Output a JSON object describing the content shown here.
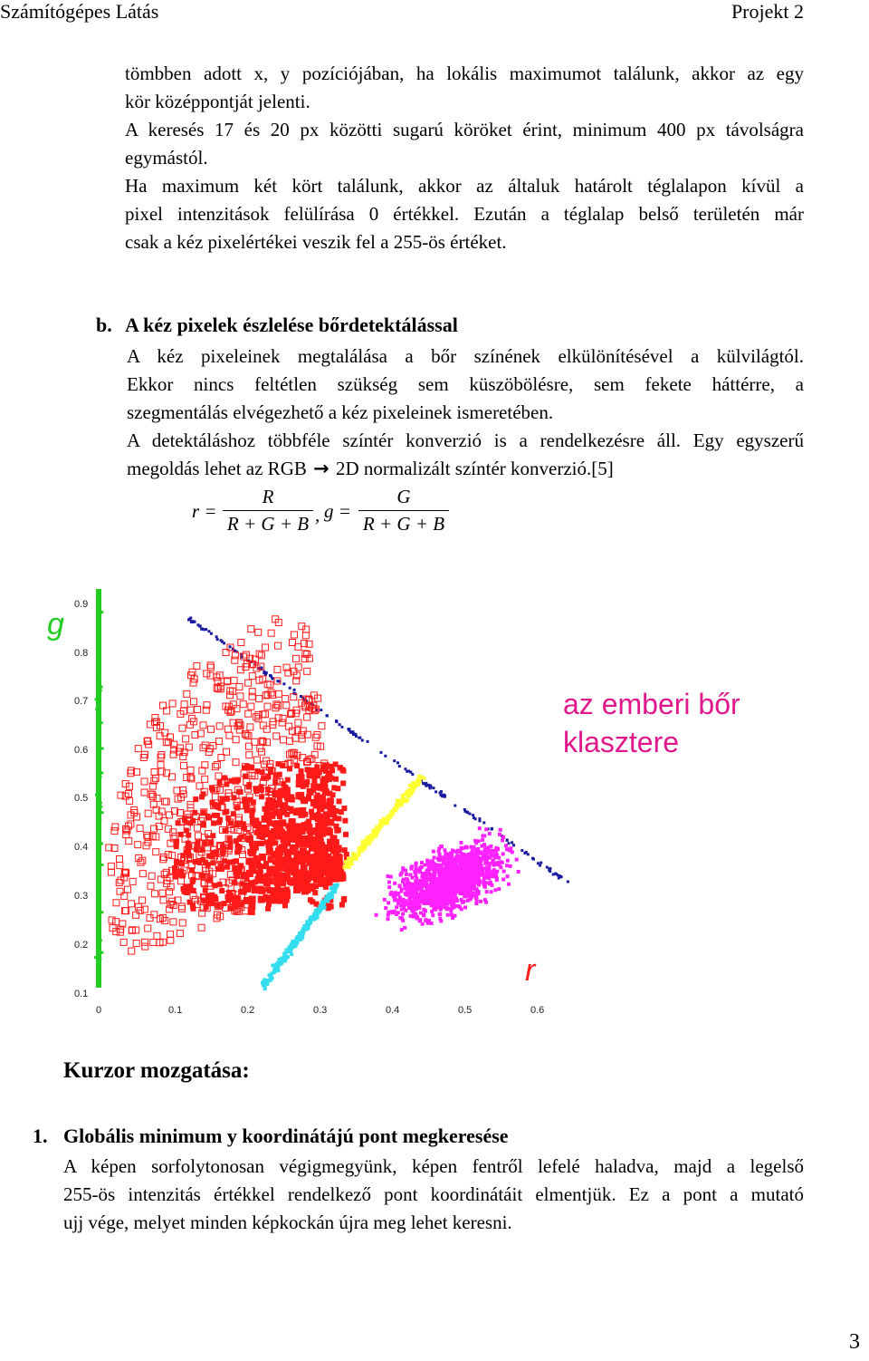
{
  "header": {
    "left": "Számítógépes Látás",
    "right": "Projekt 2"
  },
  "intro_lines": [
    "tömbben adott x, y pozíciójában, ha lokális maximumot találunk, akkor az egy",
    "kör középpontját jelenti.",
    "A keresés 17 és 20 px közötti sugarú köröket érint, minimum 400 px távolságra",
    "egymástól.",
    "Ha maximum két kört találunk, akkor az általuk határolt téglalapon kívül a",
    "pixel intenzitások felülírása 0 értékkel. Ezután a téglalap belső területén már",
    "csak a kéz pixelértékei veszik fel a 255-ös értéket."
  ],
  "section_b": {
    "label": "b.",
    "title": "A kéz pixelek észlelése bőrdetektálással",
    "lines": [
      "A kéz pixeleinek megtalálása a bőr színének elkülönítésével a külvilágtól.",
      "Ekkor nincs feltétlen szükség sem küszöbölésre, sem fekete háttérre, a",
      "szegmentálás elvégezhető a kéz pixeleinek ismeretében.",
      "A detektáláshoz többféle színtér konverzió is a rendelkezésre áll. Egy egyszerű"
    ],
    "last_line_pre": "megoldás lehet az RGB",
    "arrow": "→",
    "last_line_post": "2D normalizált színtér konverzió.[5]"
  },
  "formula": {
    "r_lhs": "r =",
    "r_num": "R",
    "r_den": "R + G + B",
    "sep": ",",
    "g_lhs": "g =",
    "g_num": "G",
    "g_den": "R + G + B"
  },
  "figure": {
    "ylabel": "g",
    "xlabel": "r",
    "annotation_line1": "az emberi bőr",
    "annotation_line2": "klasztere",
    "annotation_color": "#e0188c",
    "y_ticks": [
      "0.9",
      "0.8",
      "0.7",
      "0.6",
      "0.5",
      "0.4",
      "0.3",
      "0.2",
      "0.1"
    ],
    "x_ticks": [
      "0",
      "0.1",
      "0.2",
      "0.3",
      "0.4",
      "0.5",
      "0.6"
    ],
    "colors": {
      "red": "#ff1a1a",
      "magenta": "#ff22ff",
      "yellow": "#ffff33",
      "cyan": "#33ddee",
      "blue": "#1a1aa0",
      "green": "#22cc22"
    }
  },
  "kurzor": {
    "title": "Kurzor mozgatása:",
    "item_number": "1.",
    "item_title": "Globális minimum y koordinátájú pont megkeresése",
    "lines": [
      "A képen sorfolytonosan végigmegyünk, képen fentről lefelé haladva, majd a legelső",
      "255-ös intenzitás értékkel rendelkező pont koordinátáit elmentjük. Ez a pont a mutató"
    ],
    "last_line": "ujj vége, melyet minden képkockán újra meg lehet keresni."
  },
  "page_number": "3"
}
